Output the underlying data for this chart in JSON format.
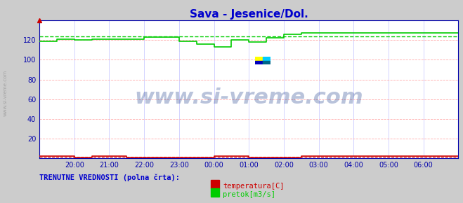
{
  "title": "Sava - Jesenice/Dol.",
  "title_color": "#0000cc",
  "bg_color": "#cccccc",
  "plot_bg_color": "#ffffff",
  "grid_color_h": "#ffaaaa",
  "grid_color_v": "#ccccff",
  "tick_color": "#0000aa",
  "xlim": [
    0,
    144
  ],
  "ylim": [
    0,
    140
  ],
  "yticks": [
    20,
    40,
    60,
    80,
    100,
    120
  ],
  "xtick_positions": [
    12,
    24,
    36,
    48,
    60,
    72,
    84,
    96,
    108,
    120,
    132
  ],
  "xtick_labels": [
    "20:00",
    "21:00",
    "22:00",
    "23:00",
    "00:00",
    "01:00",
    "02:00",
    "03:00",
    "04:00",
    "05:00",
    "06:00"
  ],
  "flow_x": [
    0,
    6,
    6,
    12,
    12,
    18,
    18,
    36,
    36,
    48,
    48,
    54,
    54,
    60,
    60,
    66,
    66,
    72,
    72,
    78,
    78,
    84,
    84,
    90,
    90,
    144
  ],
  "flow_y": [
    119,
    119,
    121,
    121,
    120,
    120,
    121,
    121,
    123,
    123,
    119,
    119,
    116,
    116,
    113,
    113,
    120,
    120,
    118,
    118,
    122,
    122,
    126,
    126,
    127,
    127
  ],
  "flow_avg_y": 124,
  "temp_x": [
    0,
    12,
    12,
    18,
    18,
    30,
    30,
    60,
    60,
    72,
    72,
    90,
    90,
    144
  ],
  "temp_y": [
    2,
    2,
    1,
    1,
    2,
    2,
    1,
    1,
    2,
    2,
    1,
    1,
    2,
    2
  ],
  "temp_avg_y": 1.5,
  "flow_color": "#00cc00",
  "flow_avg_color": "#00cc00",
  "temp_color": "#cc0000",
  "temp_avg_color": "#cc0000",
  "legend_text": "TRENUTNE VREDNOSTI (polna črta):",
  "legend_color": "#0000cc",
  "legend_item1": "temperatura[C]",
  "legend_item2": "pretok[m3/s]",
  "legend_item1_color": "#cc0000",
  "legend_item2_color": "#00cc00",
  "left_label": "www.si-vreme.com",
  "watermark_text": "www.si-vreme.com",
  "watermark_color": "#1a3a8a",
  "watermark_alpha": 0.3,
  "watermark_fontsize": 22,
  "logo_colors": [
    "#ffff00",
    "#00ccff",
    "#0000bb",
    "#006688"
  ]
}
